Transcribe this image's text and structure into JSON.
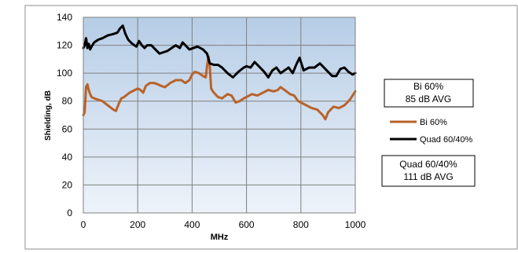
{
  "chart_data": {
    "type": "line",
    "xlabel": "MHz",
    "ylabel": "Shielding, dB",
    "xlim": [
      0,
      1000
    ],
    "ylim": [
      0,
      140
    ],
    "xticks": [
      0,
      200,
      400,
      600,
      800,
      1000
    ],
    "yticks": [
      0,
      20,
      40,
      60,
      80,
      100,
      120,
      140
    ],
    "grid": true,
    "legend_position": "right",
    "series": [
      {
        "name": "Bi 60%",
        "color": "#b8632a",
        "x": [
          0,
          5,
          10,
          15,
          20,
          25,
          30,
          40,
          55,
          70,
          90,
          110,
          120,
          130,
          140,
          150,
          170,
          190,
          200,
          210,
          220,
          230,
          245,
          260,
          275,
          285,
          300,
          320,
          340,
          360,
          375,
          390,
          400,
          410,
          425,
          440,
          450,
          455,
          460,
          465,
          470,
          480,
          495,
          510,
          530,
          545,
          560,
          575,
          590,
          600,
          620,
          640,
          660,
          680,
          700,
          715,
          725,
          740,
          760,
          775,
          790,
          800,
          820,
          840,
          860,
          870,
          880,
          890,
          900,
          920,
          940,
          960,
          980,
          1000
        ],
        "y": [
          70,
          72,
          90,
          92,
          88,
          85,
          83,
          82,
          81,
          80,
          77,
          74,
          73,
          78,
          82,
          83,
          86,
          88,
          89,
          88,
          86,
          91,
          93,
          93,
          92,
          91,
          90,
          93,
          95,
          95,
          93,
          95,
          99,
          101,
          100,
          98,
          97,
          105,
          112,
          105,
          89,
          86,
          83,
          82,
          85,
          84,
          79,
          80,
          82,
          83,
          85,
          84,
          86,
          88,
          87,
          88,
          90,
          88,
          85,
          84,
          80,
          79,
          77,
          75,
          74,
          72,
          70,
          67,
          72,
          76,
          75,
          77,
          81,
          87
        ]
      },
      {
        "name": "Quad 60/40%",
        "color": "#000000",
        "x": [
          0,
          5,
          10,
          15,
          20,
          25,
          30,
          40,
          55,
          70,
          90,
          110,
          125,
          135,
          145,
          155,
          165,
          180,
          195,
          205,
          215,
          225,
          235,
          250,
          265,
          280,
          295,
          310,
          325,
          340,
          355,
          365,
          375,
          390,
          405,
          420,
          440,
          455,
          465,
          480,
          495,
          510,
          530,
          550,
          570,
          590,
          600,
          615,
          630,
          650,
          665,
          680,
          695,
          710,
          725,
          740,
          755,
          770,
          785,
          795,
          810,
          830,
          850,
          870,
          890,
          900,
          915,
          930,
          945,
          960,
          975,
          990,
          1000
        ],
        "y": [
          118,
          120,
          125,
          118,
          121,
          117,
          119,
          122,
          124,
          125,
          127,
          128,
          129,
          132,
          134,
          128,
          124,
          121,
          119,
          123,
          120,
          118,
          120,
          120,
          117,
          114,
          115,
          116,
          118,
          120,
          118,
          122,
          120,
          117,
          118,
          119,
          117,
          114,
          107,
          106,
          106,
          104,
          100,
          97,
          101,
          104,
          105,
          104,
          108,
          104,
          101,
          97,
          102,
          104,
          100,
          102,
          104,
          100,
          107,
          111,
          102,
          104,
          104,
          107,
          103,
          101,
          98,
          98,
          103,
          104,
          101,
          99,
          100
        ]
      }
    ],
    "annotations": [
      {
        "line1": "Bi 60%",
        "line2": "85 dB AVG"
      },
      {
        "line1": "Quad 60/40%",
        "line2": "111 dB AVG"
      }
    ]
  }
}
